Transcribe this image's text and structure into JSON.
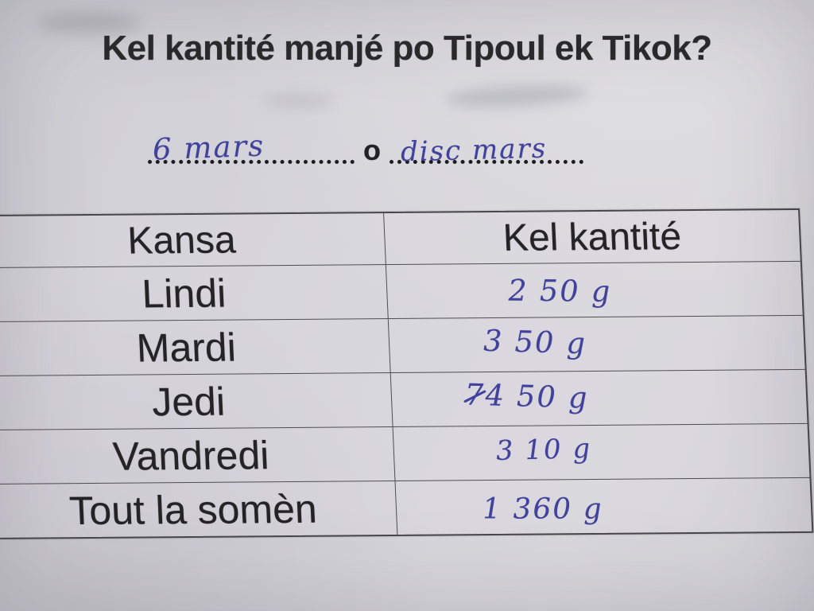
{
  "worksheet": {
    "title": "Kel kantité manjé po Tipoul ek Tikok?",
    "answer_line": {
      "first_answer": "6 mars",
      "separator": "o",
      "second_answer": "disc mars"
    },
    "table": {
      "headers": {
        "col1": "Kansa",
        "col2": "Kel kantité"
      },
      "rows": [
        {
          "day": "Lindi",
          "struck": "",
          "value": "2 50 g"
        },
        {
          "day": "Mardi",
          "struck": "",
          "value": "3 50 g"
        },
        {
          "day": "Jedi",
          "struck": "7",
          "value": "4 50 g"
        },
        {
          "day": "Vandredi",
          "struck": "",
          "value": "3 10 g"
        },
        {
          "day": "Tout la somèn",
          "struck": "",
          "value": "1 360 g"
        }
      ]
    },
    "colors": {
      "paper": "#d6d5db",
      "printed_text": "#2a2a2c",
      "handwriting_ink": "#41429b",
      "table_lines": "#4e4e52"
    }
  }
}
